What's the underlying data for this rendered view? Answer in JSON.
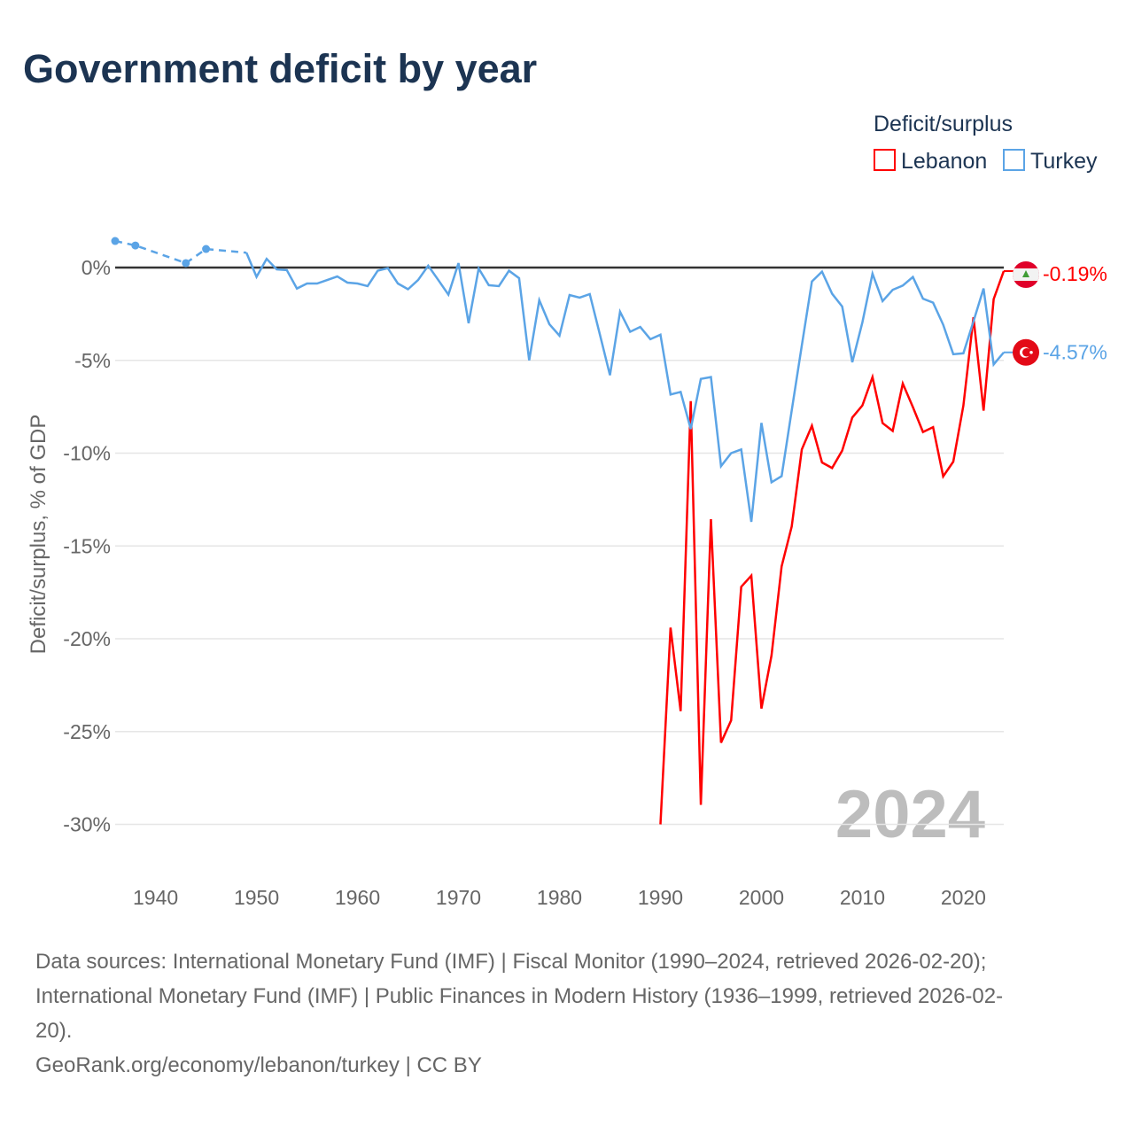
{
  "chart_data": {
    "type": "line",
    "title": "Government deficit by year",
    "ylabel": "Deficit/surplus, % of GDP",
    "xlabel": "",
    "legend_title": "Deficit/surplus",
    "legend_placement": "top-right",
    "xlim": [
      1936,
      2024
    ],
    "ylim": [
      -32,
      2
    ],
    "x_ticks": [
      1940,
      1950,
      1960,
      1970,
      1980,
      1990,
      2000,
      2010,
      2020
    ],
    "x_tick_labels": [
      "1940",
      "1950",
      "1960",
      "1970",
      "1980",
      "1990",
      "2000",
      "2010",
      "2020"
    ],
    "y_ticks": [
      0,
      -5,
      -10,
      -15,
      -20,
      -25,
      -30
    ],
    "y_tick_labels": [
      "0%",
      "-5%",
      "-10%",
      "-15%",
      "-20%",
      "-25%",
      "-30%"
    ],
    "year_watermark": "2024",
    "series": [
      {
        "name": "Lebanon",
        "color": "#ff0000",
        "end_label": "-0.19%",
        "flag": "lebanon-flag",
        "x": [
          1990,
          1991,
          1992,
          1993,
          1994,
          1995,
          1996,
          1997,
          1998,
          1999,
          2000,
          2001,
          2002,
          2003,
          2004,
          2005,
          2006,
          2007,
          2008,
          2009,
          2010,
          2011,
          2012,
          2013,
          2014,
          2015,
          2016,
          2017,
          2018,
          2019,
          2020,
          2021,
          2022,
          2023,
          2024
        ],
        "y": [
          -30.0,
          -19.4,
          -23.9,
          -7.2,
          -28.95,
          -13.56,
          -25.6,
          -24.4,
          -17.2,
          -16.6,
          -23.76,
          -20.9,
          -16.1,
          -13.95,
          -9.8,
          -8.52,
          -10.5,
          -10.8,
          -9.86,
          -8.08,
          -7.43,
          -5.9,
          -8.38,
          -8.8,
          -6.25,
          -7.52,
          -8.86,
          -8.6,
          -11.25,
          -10.46,
          -7.44,
          -2.68,
          -7.71,
          -1.7,
          -0.19
        ]
      },
      {
        "name": "Turkey",
        "color": "#5ba4e6",
        "end_label": "-4.57%",
        "flag": "turkey-flag",
        "marker_years": [
          1936,
          1938,
          1943,
          1945
        ],
        "dashed_until": 1949,
        "x": [
          1936,
          1938,
          1943,
          1945,
          1949,
          1950,
          1951,
          1952,
          1953,
          1954,
          1955,
          1956,
          1957,
          1958,
          1959,
          1960,
          1961,
          1962,
          1963,
          1964,
          1965,
          1966,
          1967,
          1968,
          1969,
          1970,
          1971,
          1972,
          1973,
          1974,
          1975,
          1976,
          1977,
          1978,
          1979,
          1980,
          1981,
          1982,
          1983,
          1984,
          1985,
          1986,
          1987,
          1988,
          1989,
          1990,
          1991,
          1992,
          1993,
          1994,
          1995,
          1996,
          1997,
          1998,
          1999,
          2000,
          2001,
          2002,
          2003,
          2004,
          2005,
          2006,
          2007,
          2008,
          2009,
          2010,
          2011,
          2012,
          2013,
          2014,
          2015,
          2016,
          2017,
          2018,
          2019,
          2020,
          2021,
          2022,
          2023,
          2024
        ],
        "y": [
          1.43,
          1.19,
          0.24,
          1.0,
          0.8,
          -0.5,
          0.47,
          -0.1,
          -0.14,
          -1.13,
          -0.86,
          -0.86,
          -0.67,
          -0.48,
          -0.81,
          -0.86,
          -1.0,
          -0.17,
          -0.03,
          -0.86,
          -1.17,
          -0.67,
          0.1,
          -0.67,
          -1.46,
          0.24,
          -3.0,
          -0.05,
          -0.95,
          -1.0,
          -0.17,
          -0.57,
          -5.0,
          -1.76,
          -3.05,
          -3.67,
          -1.48,
          -1.62,
          -1.43,
          -3.6,
          -5.8,
          -2.38,
          -3.46,
          -3.2,
          -3.86,
          -3.62,
          -6.84,
          -6.7,
          -8.7,
          -6.0,
          -5.9,
          -10.7,
          -10.0,
          -9.8,
          -13.7,
          -8.37,
          -11.57,
          -11.24,
          -7.7,
          -4.2,
          -0.75,
          -0.22,
          -1.41,
          -2.1,
          -5.1,
          -2.95,
          -0.33,
          -1.81,
          -1.2,
          -0.97,
          -0.51,
          -1.68,
          -1.89,
          -3.08,
          -4.67,
          -4.62,
          -2.9,
          -1.13,
          -5.22,
          -4.57
        ]
      }
    ]
  },
  "footer": {
    "line1": "Data sources: International Monetary Fund (IMF) | Fiscal Monitor (1990–2024, retrieved 2026-02-20);",
    "line2": "International Monetary Fund (IMF) | Public Finances in Modern History (1936–1999, retrieved 2026-02-",
    "line3": "20).",
    "line4": "GeoRank.org/economy/lebanon/turkey | CC BY"
  }
}
